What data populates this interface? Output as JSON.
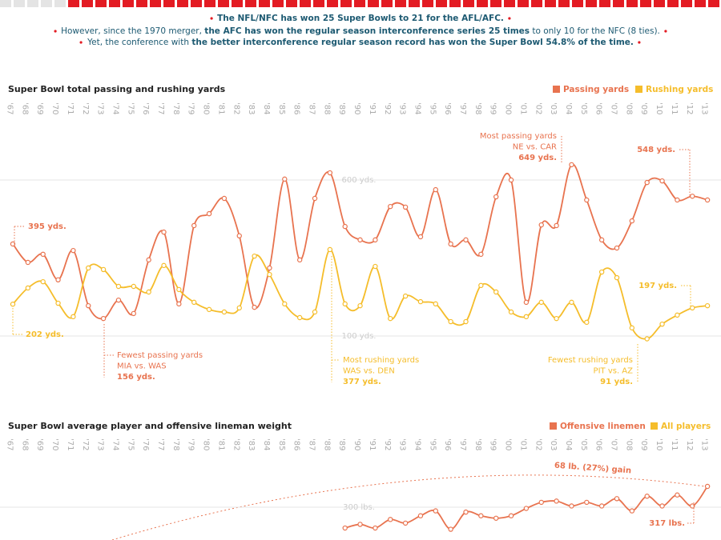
{
  "header": {
    "lines": [
      [
        {
          "text": "The NFL/NFC has won 25 Super Bowls to 21 for the AFL/AFC.",
          "bold": true
        }
      ],
      [
        {
          "text": "However, since the 1970 merger, "
        },
        {
          "text": "the AFC has won the regular season interconference series 25 times",
          "bold": true
        },
        {
          "text": " to only 10 for the NFC (8 ties)."
        }
      ],
      [
        {
          "text": "Yet, the conference with "
        },
        {
          "text": "the better interconference regular season record has won the Super Bowl 54.8% of the time.",
          "bold": true
        }
      ]
    ]
  },
  "chart_data": [
    {
      "type": "line",
      "title": "Super Bowl total passing and rushing yards",
      "categories": [
        "'67",
        "'68",
        "'69",
        "'70",
        "'71",
        "'72",
        "'73",
        "'74",
        "'75",
        "'76",
        "'77",
        "'78",
        "'79",
        "'80",
        "'81",
        "'82",
        "'83",
        "'84",
        "'85",
        "'86",
        "'87",
        "'88",
        "'89",
        "'90",
        "'91",
        "'92",
        "'93",
        "'94",
        "'95",
        "'96",
        "'97",
        "'98",
        "'99",
        "'00",
        "'01",
        "'02",
        "'03",
        "'04",
        "'05",
        "'06",
        "'07",
        "'08",
        "'09",
        "'10",
        "'11",
        "'12",
        "'13"
      ],
      "series": [
        {
          "name": "Passing yards",
          "color": "#e8734f",
          "values": [
            395,
            336,
            362,
            280,
            374,
            197,
            156,
            215,
            172,
            344,
            433,
            203,
            454,
            492,
            541,
            421,
            192,
            318,
            603,
            344,
            541,
            623,
            451,
            408,
            408,
            515,
            513,
            418,
            569,
            395,
            408,
            362,
            546,
            600,
            208,
            456,
            454,
            649,
            536,
            408,
            382,
            469,
            592,
            597,
            536,
            548,
            536
          ]
        },
        {
          "name": "Rushing yards",
          "color": "#f5bd2b",
          "values": [
            202,
            254,
            274,
            205,
            162,
            318,
            313,
            259,
            259,
            241,
            326,
            249,
            208,
            185,
            177,
            190,
            356,
            297,
            203,
            159,
            177,
            377,
            203,
            197,
            323,
            156,
            228,
            210,
            203,
            146,
            146,
            262,
            241,
            177,
            162,
            208,
            156,
            208,
            144,
            305,
            287,
            126,
            91,
            138,
            167,
            190,
            197
          ]
        }
      ],
      "ylim": [
        50,
        800
      ],
      "yticks": [
        {
          "value": 100,
          "label": "100 yds."
        },
        {
          "value": 600,
          "label": "600 yds."
        }
      ],
      "grid": true,
      "legend": "top-right",
      "annotations": [
        {
          "lines": [
            "395 yds."
          ],
          "color": "#e8734f"
        },
        {
          "lines": [
            "202 yds."
          ],
          "color": "#f5bd2b"
        },
        {
          "lines": [
            "Fewest passing yards",
            "MIA vs. WAS",
            "156 yds."
          ],
          "color": "#e8734f"
        },
        {
          "lines": [
            "Most rushing yards",
            "WAS vs. DEN",
            "377 yds."
          ],
          "color": "#f5bd2b"
        },
        {
          "lines": [
            "Most passing yards",
            "NE vs. CAR",
            "649 yds."
          ],
          "color": "#e8734f"
        },
        {
          "lines": [
            "548 yds."
          ],
          "color": "#e8734f"
        },
        {
          "lines": [
            "197 yds."
          ],
          "color": "#f5bd2b"
        },
        {
          "lines": [
            "Fewest rushing yards",
            "PIT vs. AZ",
            "91 yds."
          ],
          "color": "#f5bd2b"
        }
      ]
    },
    {
      "type": "line",
      "title": "Super Bowl average player and offensive lineman weight",
      "categories": [
        "'67",
        "'68",
        "'69",
        "'70",
        "'71",
        "'72",
        "'73",
        "'74",
        "'75",
        "'76",
        "'77",
        "'78",
        "'79",
        "'80",
        "'81",
        "'82",
        "'83",
        "'84",
        "'85",
        "'86",
        "'87",
        "'88",
        "'89",
        "'90",
        "'91",
        "'92",
        "'93",
        "'94",
        "'95",
        "'96",
        "'97",
        "'98",
        "'99",
        "'00",
        "'01",
        "'02",
        "'03",
        "'04",
        "'05",
        "'06",
        "'07",
        "'08",
        "'09",
        "'10",
        "'11",
        "'12",
        "'13"
      ],
      "series": [
        {
          "name": "Offensive linemen",
          "color": "#e8734f",
          "values": [
            null,
            null,
            null,
            null,
            null,
            null,
            null,
            null,
            null,
            null,
            null,
            null,
            null,
            null,
            null,
            null,
            null,
            null,
            null,
            null,
            null,
            null,
            283,
            286,
            283,
            290,
            287,
            293,
            297,
            282,
            296,
            293,
            291,
            293,
            299,
            304,
            305,
            301,
            304,
            301,
            307,
            297,
            309,
            301,
            310,
            301,
            317
          ]
        },
        {
          "name": "All players",
          "color": "#f5bd2b",
          "values": [
            null,
            null,
            null,
            null,
            null,
            null,
            null,
            null,
            null,
            null,
            null,
            null,
            null,
            null,
            null,
            null,
            null,
            null,
            null,
            null,
            null,
            null,
            null,
            null,
            null,
            null,
            null,
            null,
            null,
            null,
            null,
            null,
            null,
            null,
            null,
            null,
            null,
            null,
            null,
            null,
            null,
            null,
            null,
            null,
            null,
            null,
            null
          ]
        }
      ],
      "ylim": [
        274,
        350
      ],
      "yticks": [
        {
          "value": 300,
          "label": "300 lbs."
        }
      ],
      "grid": true,
      "legend": "top-right",
      "annotations": [
        {
          "lines": [
            "68 lb. (27%) gain"
          ],
          "color": "#e8734f"
        },
        {
          "lines": [
            "317 lbs."
          ],
          "color": "#e8734f"
        }
      ]
    }
  ]
}
